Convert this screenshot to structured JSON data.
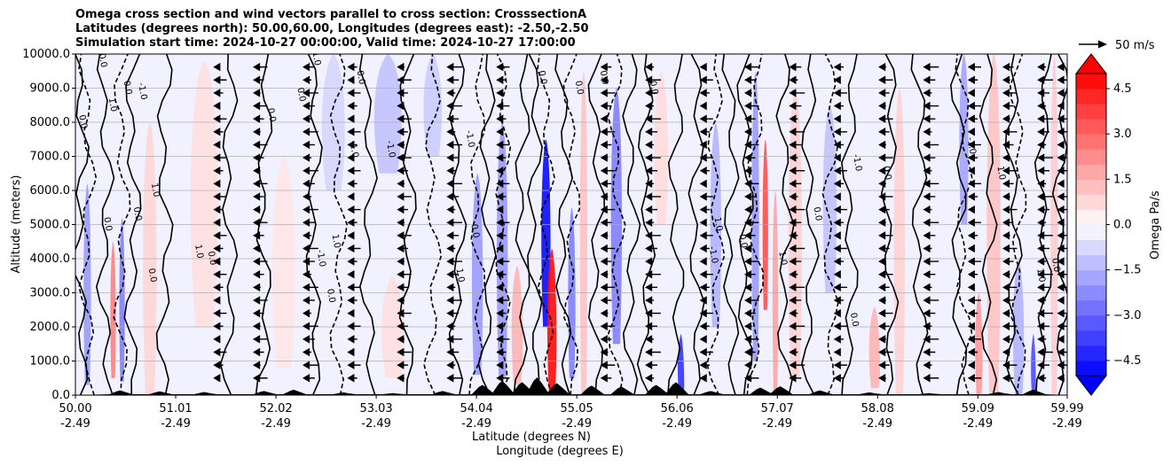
{
  "chart_data": {
    "type": "heatmap",
    "title_lines": [
      "Omega cross section and wind vectors parallel to cross section: CrosssectionA",
      "Latitudes (degrees north): 50.00,60.00, Longitudes (degrees east): -2.50,-2.50",
      "Simulation start time: 2024-10-27 00:00:00, Valid time: 2024-10-27 17:00:00"
    ],
    "xlabel_lines": [
      "Latitude (degrees N)",
      "Longitude (degrees E)"
    ],
    "ylabel": "Altitude (meters)",
    "x_ticks": [
      {
        "lat": "50.00",
        "lon": "-2.49"
      },
      {
        "lat": "51.01",
        "lon": "-2.49"
      },
      {
        "lat": "52.02",
        "lon": "-2.49"
      },
      {
        "lat": "53.03",
        "lon": "-2.49"
      },
      {
        "lat": "54.04",
        "lon": "-2.49"
      },
      {
        "lat": "55.05",
        "lon": "-2.49"
      },
      {
        "lat": "56.06",
        "lon": "-2.49"
      },
      {
        "lat": "57.07",
        "lon": "-2.49"
      },
      {
        "lat": "58.08",
        "lon": "-2.49"
      },
      {
        "lat": "59.09",
        "lon": "-2.49"
      },
      {
        "lat": "59.99",
        "lon": "-2.49"
      }
    ],
    "xlim": [
      50.0,
      59.99
    ],
    "y_ticks": [
      "0.0",
      "1000.0",
      "2000.0",
      "3000.0",
      "4000.0",
      "5000.0",
      "6000.0",
      "7000.0",
      "8000.0",
      "9000.0",
      "10000.0"
    ],
    "ylim": [
      0,
      10000
    ],
    "grid": "horizontal",
    "colorbar": {
      "label": "Omega Pa/s",
      "ticks": [
        "4.5",
        "3.0",
        "1.5",
        "0.0",
        "−1.5",
        "−3.0",
        "−4.5"
      ],
      "range": [
        -5.0,
        5.0
      ],
      "extend": "both",
      "colormap": "bwr"
    },
    "quiver_key": {
      "label": "50 m/s",
      "value": 50
    },
    "contour_labels": [
      "1.0",
      "0.0",
      "-1.0"
    ],
    "omega_bands": [
      {
        "lat": 50.12,
        "w": 0.08,
        "z0": 300,
        "z1": 6200,
        "v": -2.0
      },
      {
        "lat": 50.38,
        "w": 0.06,
        "z0": 500,
        "z1": 4500,
        "v": 2.5
      },
      {
        "lat": 50.47,
        "w": 0.06,
        "z0": 400,
        "z1": 5200,
        "v": -2.5
      },
      {
        "lat": 50.75,
        "w": 0.15,
        "z0": 0,
        "z1": 8000,
        "v": 0.8
      },
      {
        "lat": 51.3,
        "w": 0.3,
        "z0": 2000,
        "z1": 9800,
        "v": 0.6
      },
      {
        "lat": 52.1,
        "w": 0.25,
        "z0": 800,
        "z1": 7000,
        "v": 0.5
      },
      {
        "lat": 52.6,
        "w": 0.25,
        "z0": 6000,
        "z1": 10000,
        "v": -0.8
      },
      {
        "lat": 53.15,
        "w": 0.3,
        "z0": 6500,
        "z1": 10000,
        "v": -1.2
      },
      {
        "lat": 53.2,
        "w": 0.25,
        "z0": 500,
        "z1": 3500,
        "v": 0.6
      },
      {
        "lat": 53.6,
        "w": 0.2,
        "z0": 7000,
        "z1": 10000,
        "v": -1.0
      },
      {
        "lat": 54.05,
        "w": 0.12,
        "z0": 600,
        "z1": 6500,
        "v": -2.0
      },
      {
        "lat": 54.3,
        "w": 0.12,
        "z0": 500,
        "z1": 8000,
        "v": -2.0
      },
      {
        "lat": 54.45,
        "w": 0.12,
        "z0": 300,
        "z1": 3800,
        "v": 1.5
      },
      {
        "lat": 54.74,
        "w": 0.1,
        "z0": 2000,
        "z1": 7500,
        "v": -4.8
      },
      {
        "lat": 54.8,
        "w": 0.1,
        "z0": 0,
        "z1": 4300,
        "v": 4.8
      },
      {
        "lat": 55.0,
        "w": 0.08,
        "z0": 500,
        "z1": 5500,
        "v": -2.5
      },
      {
        "lat": 55.12,
        "w": 0.08,
        "z0": 0,
        "z1": 9500,
        "v": 1.2
      },
      {
        "lat": 55.45,
        "w": 0.12,
        "z0": 1500,
        "z1": 9000,
        "v": -2.5
      },
      {
        "lat": 55.9,
        "w": 0.15,
        "z0": 5000,
        "z1": 9500,
        "v": 0.7
      },
      {
        "lat": 56.1,
        "w": 0.07,
        "z0": 0,
        "z1": 1800,
        "v": -4.0
      },
      {
        "lat": 56.45,
        "w": 0.12,
        "z0": 2000,
        "z1": 8000,
        "v": -1.5
      },
      {
        "lat": 56.85,
        "w": 0.08,
        "z0": 1000,
        "z1": 9500,
        "v": -2.0
      },
      {
        "lat": 56.95,
        "w": 0.06,
        "z0": 2500,
        "z1": 7500,
        "v": 3.5
      },
      {
        "lat": 57.05,
        "w": 0.06,
        "z0": 0,
        "z1": 6000,
        "v": 1.8
      },
      {
        "lat": 57.25,
        "w": 0.15,
        "z0": 500,
        "z1": 9000,
        "v": 0.9
      },
      {
        "lat": 57.6,
        "w": 0.15,
        "z0": 3000,
        "z1": 8500,
        "v": -1.2
      },
      {
        "lat": 58.05,
        "w": 0.12,
        "z0": 200,
        "z1": 2600,
        "v": 1.5
      },
      {
        "lat": 58.3,
        "w": 0.12,
        "z0": 0,
        "z1": 9000,
        "v": 0.9
      },
      {
        "lat": 58.95,
        "w": 0.1,
        "z0": 5000,
        "z1": 10000,
        "v": -1.8
      },
      {
        "lat": 59.1,
        "w": 0.08,
        "z0": 0,
        "z1": 3000,
        "v": 2.0
      },
      {
        "lat": 59.25,
        "w": 0.15,
        "z0": 0,
        "z1": 10000,
        "v": 1.2
      },
      {
        "lat": 59.5,
        "w": 0.12,
        "z0": 0,
        "z1": 4000,
        "v": -1.5
      },
      {
        "lat": 59.65,
        "w": 0.05,
        "z0": 0,
        "z1": 1800,
        "v": -3.5
      },
      {
        "lat": 59.86,
        "w": 0.08,
        "z0": 0,
        "z1": 10000,
        "v": 1.0
      }
    ],
    "solid_contour_lats": [
      50.05,
      50.3,
      50.58,
      50.9,
      51.55,
      51.9,
      52.4,
      52.95,
      53.35,
      53.85,
      54.15,
      54.5,
      54.62,
      54.92,
      55.25,
      55.6,
      55.75,
      56.05,
      56.25,
      56.6,
      56.75,
      57.15,
      57.4,
      57.8,
      58.2,
      58.5,
      58.9,
      59.2,
      59.45,
      59.75,
      59.93
    ],
    "dashed_contour_lats": [
      50.12,
      50.47,
      52.65,
      53.6,
      54.05,
      54.3,
      54.74,
      55.0,
      55.45,
      56.45,
      56.85,
      57.6,
      58.95,
      59.5
    ],
    "vector_lats": [
      51.4,
      51.8,
      52.3,
      52.75,
      53.25,
      53.75,
      54.25,
      55.3,
      55.75,
      56.3,
      56.75,
      57.2,
      57.65,
      58.1,
      58.55,
      59.0,
      59.35,
      59.7,
      59.9
    ],
    "contour_text_marks": [
      {
        "lat": 50.25,
        "z": 9800,
        "t": "0.0"
      },
      {
        "lat": 50.5,
        "z": 9000,
        "t": "0.0"
      },
      {
        "lat": 50.35,
        "z": 8500,
        "t": "1.0"
      },
      {
        "lat": 50.65,
        "z": 8900,
        "t": "-1.0"
      },
      {
        "lat": 50.05,
        "z": 8000,
        "t": "0.0"
      },
      {
        "lat": 50.78,
        "z": 6000,
        "t": "1.0"
      },
      {
        "lat": 50.6,
        "z": 5300,
        "t": "0.0"
      },
      {
        "lat": 50.3,
        "z": 5000,
        "t": "0.0"
      },
      {
        "lat": 50.75,
        "z": 3500,
        "t": "0.0"
      },
      {
        "lat": 51.22,
        "z": 4200,
        "t": "1.0"
      },
      {
        "lat": 51.35,
        "z": 4000,
        "t": "0.0"
      },
      {
        "lat": 51.95,
        "z": 8200,
        "t": "0.0"
      },
      {
        "lat": 52.25,
        "z": 8800,
        "t": "0.0"
      },
      {
        "lat": 52.4,
        "z": 9900,
        "t": "-1.0"
      },
      {
        "lat": 52.85,
        "z": 9300,
        "t": "0.0"
      },
      {
        "lat": 52.78,
        "z": 7200,
        "t": "-1.0"
      },
      {
        "lat": 53.15,
        "z": 7200,
        "t": "-1.0"
      },
      {
        "lat": 52.45,
        "z": 4000,
        "t": "-1.0"
      },
      {
        "lat": 52.6,
        "z": 4500,
        "t": "1.0"
      },
      {
        "lat": 52.55,
        "z": 2900,
        "t": "0.0"
      },
      {
        "lat": 53.85,
        "z": 3500,
        "t": "1.0"
      },
      {
        "lat": 54.0,
        "z": 4800,
        "t": "0.0"
      },
      {
        "lat": 53.95,
        "z": 7500,
        "t": "-1.0"
      },
      {
        "lat": 54.68,
        "z": 9300,
        "t": "0.0"
      },
      {
        "lat": 55.05,
        "z": 9000,
        "t": "0.0"
      },
      {
        "lat": 55.3,
        "z": 9300,
        "t": "0.0"
      },
      {
        "lat": 55.8,
        "z": 9000,
        "t": "0.0"
      },
      {
        "lat": 56.45,
        "z": 5000,
        "t": "1.0"
      },
      {
        "lat": 56.4,
        "z": 4100,
        "t": "-1.0"
      },
      {
        "lat": 56.7,
        "z": 4500,
        "t": "0.0"
      },
      {
        "lat": 57.1,
        "z": 4000,
        "t": "1.0"
      },
      {
        "lat": 57.45,
        "z": 5300,
        "t": "0.0"
      },
      {
        "lat": 57.82,
        "z": 2200,
        "t": "0.0"
      },
      {
        "lat": 57.85,
        "z": 6800,
        "t": "-1.0"
      },
      {
        "lat": 58.15,
        "z": 6500,
        "t": "0.0"
      },
      {
        "lat": 59.0,
        "z": 7300,
        "t": "-1.0"
      },
      {
        "lat": 59.3,
        "z": 6500,
        "t": "1.0"
      },
      {
        "lat": 59.7,
        "z": 3500,
        "t": "1.0"
      },
      {
        "lat": 59.85,
        "z": 3800,
        "t": "0.0"
      }
    ],
    "terrain_peaks": [
      {
        "lat": 50.45,
        "h": 140
      },
      {
        "lat": 50.85,
        "h": 110
      },
      {
        "lat": 51.3,
        "h": 90
      },
      {
        "lat": 51.9,
        "h": 120
      },
      {
        "lat": 52.2,
        "h": 160
      },
      {
        "lat": 52.7,
        "h": 80
      },
      {
        "lat": 53.2,
        "h": 60
      },
      {
        "lat": 53.7,
        "h": 120
      },
      {
        "lat": 54.1,
        "h": 300
      },
      {
        "lat": 54.3,
        "h": 420
      },
      {
        "lat": 54.5,
        "h": 380
      },
      {
        "lat": 54.65,
        "h": 520
      },
      {
        "lat": 54.85,
        "h": 350
      },
      {
        "lat": 55.2,
        "h": 280
      },
      {
        "lat": 55.5,
        "h": 250
      },
      {
        "lat": 55.85,
        "h": 300
      },
      {
        "lat": 56.05,
        "h": 380
      },
      {
        "lat": 56.4,
        "h": 120
      },
      {
        "lat": 56.9,
        "h": 220
      },
      {
        "lat": 57.1,
        "h": 260
      },
      {
        "lat": 57.5,
        "h": 140
      },
      {
        "lat": 58.0,
        "h": 80
      },
      {
        "lat": 58.6,
        "h": 60
      },
      {
        "lat": 59.3,
        "h": 90
      },
      {
        "lat": 59.65,
        "h": 160
      }
    ],
    "colors": {
      "line": "#000000",
      "grid": "#b0b0b0",
      "colormap_low": "#0000ff",
      "colormap_mid": "#ffffff",
      "colormap_high": "#ff0000"
    }
  }
}
